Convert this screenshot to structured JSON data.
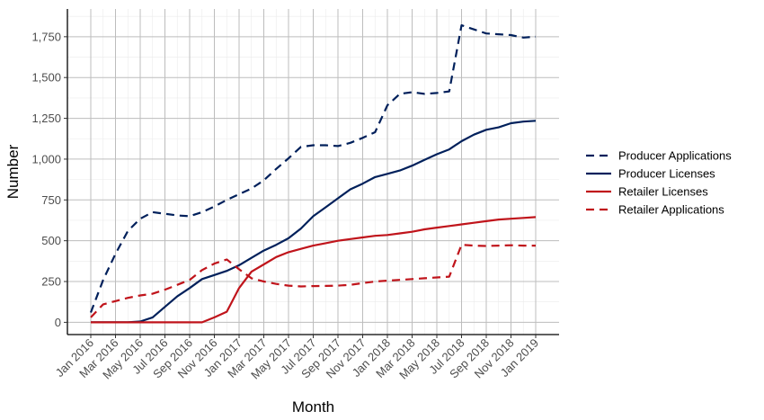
{
  "chart_data": {
    "type": "line",
    "xlabel": "Month",
    "ylabel": "Number",
    "x_tick_labels": [
      "Jan 2016",
      "Mar 2016",
      "May 2016",
      "Jul 2016",
      "Sep 2016",
      "Nov 2016",
      "Jan 2017",
      "Mar 2017",
      "May 2017",
      "Jul 2017",
      "Sep 2017",
      "Nov 2017",
      "Jan 2018",
      "Mar 2018",
      "May 2018",
      "Jul 2018",
      "Sep 2018",
      "Nov 2018",
      "Jan 2019"
    ],
    "y_ticks": [
      0,
      250,
      500,
      750,
      1000,
      1250,
      1500,
      1750
    ],
    "y_tick_labels": [
      "0",
      "250",
      "500",
      "750",
      "1,000",
      "1,250",
      "1,500",
      "1,750"
    ],
    "ylim": [
      -75,
      1920
    ],
    "xlim": [
      "Jan 2016",
      "Jan 2019"
    ],
    "grid": true,
    "legend_position": "right",
    "x": [
      "2016-01",
      "2016-02",
      "2016-03",
      "2016-04",
      "2016-05",
      "2016-06",
      "2016-07",
      "2016-08",
      "2016-09",
      "2016-10",
      "2016-11",
      "2016-12",
      "2017-01",
      "2017-02",
      "2017-03",
      "2017-04",
      "2017-05",
      "2017-06",
      "2017-07",
      "2017-08",
      "2017-09",
      "2017-10",
      "2017-11",
      "2017-12",
      "2018-01",
      "2018-02",
      "2018-03",
      "2018-04",
      "2018-05",
      "2018-06",
      "2018-07",
      "2018-08",
      "2018-09",
      "2018-10",
      "2018-11",
      "2018-12",
      "2019-01"
    ],
    "series": [
      {
        "name": "Producer Applications",
        "color": "#00205b",
        "dash": "dashed",
        "values": [
          60,
          260,
          420,
          560,
          635,
          675,
          665,
          655,
          650,
          675,
          710,
          750,
          785,
          820,
          870,
          940,
          1005,
          1075,
          1085,
          1085,
          1080,
          1100,
          1130,
          1165,
          1330,
          1400,
          1410,
          1400,
          1405,
          1415,
          1820,
          1795,
          1770,
          1765,
          1760,
          1745,
          1750
        ]
      },
      {
        "name": "Producer Licenses",
        "color": "#00205b",
        "dash": "solid",
        "values": [
          0,
          0,
          0,
          0,
          5,
          30,
          95,
          160,
          210,
          265,
          290,
          315,
          350,
          395,
          440,
          475,
          515,
          575,
          650,
          705,
          760,
          815,
          850,
          890,
          910,
          930,
          960,
          995,
          1030,
          1060,
          1110,
          1150,
          1180,
          1195,
          1220,
          1230,
          1235
        ]
      },
      {
        "name": "Retailer Licenses",
        "color": "#c0141b",
        "dash": "solid",
        "values": [
          0,
          0,
          0,
          0,
          0,
          0,
          0,
          0,
          0,
          0,
          30,
          65,
          210,
          310,
          355,
          400,
          430,
          450,
          470,
          485,
          500,
          510,
          520,
          530,
          535,
          545,
          555,
          570,
          580,
          590,
          600,
          610,
          620,
          630,
          635,
          640,
          645
        ]
      },
      {
        "name": "Retailer Applications",
        "color": "#c0141b",
        "dash": "dashed",
        "values": [
          30,
          110,
          130,
          150,
          165,
          175,
          200,
          230,
          260,
          320,
          360,
          385,
          325,
          270,
          250,
          235,
          225,
          220,
          222,
          223,
          225,
          230,
          240,
          250,
          255,
          260,
          265,
          270,
          275,
          280,
          475,
          470,
          468,
          470,
          472,
          470,
          470
        ]
      }
    ]
  }
}
